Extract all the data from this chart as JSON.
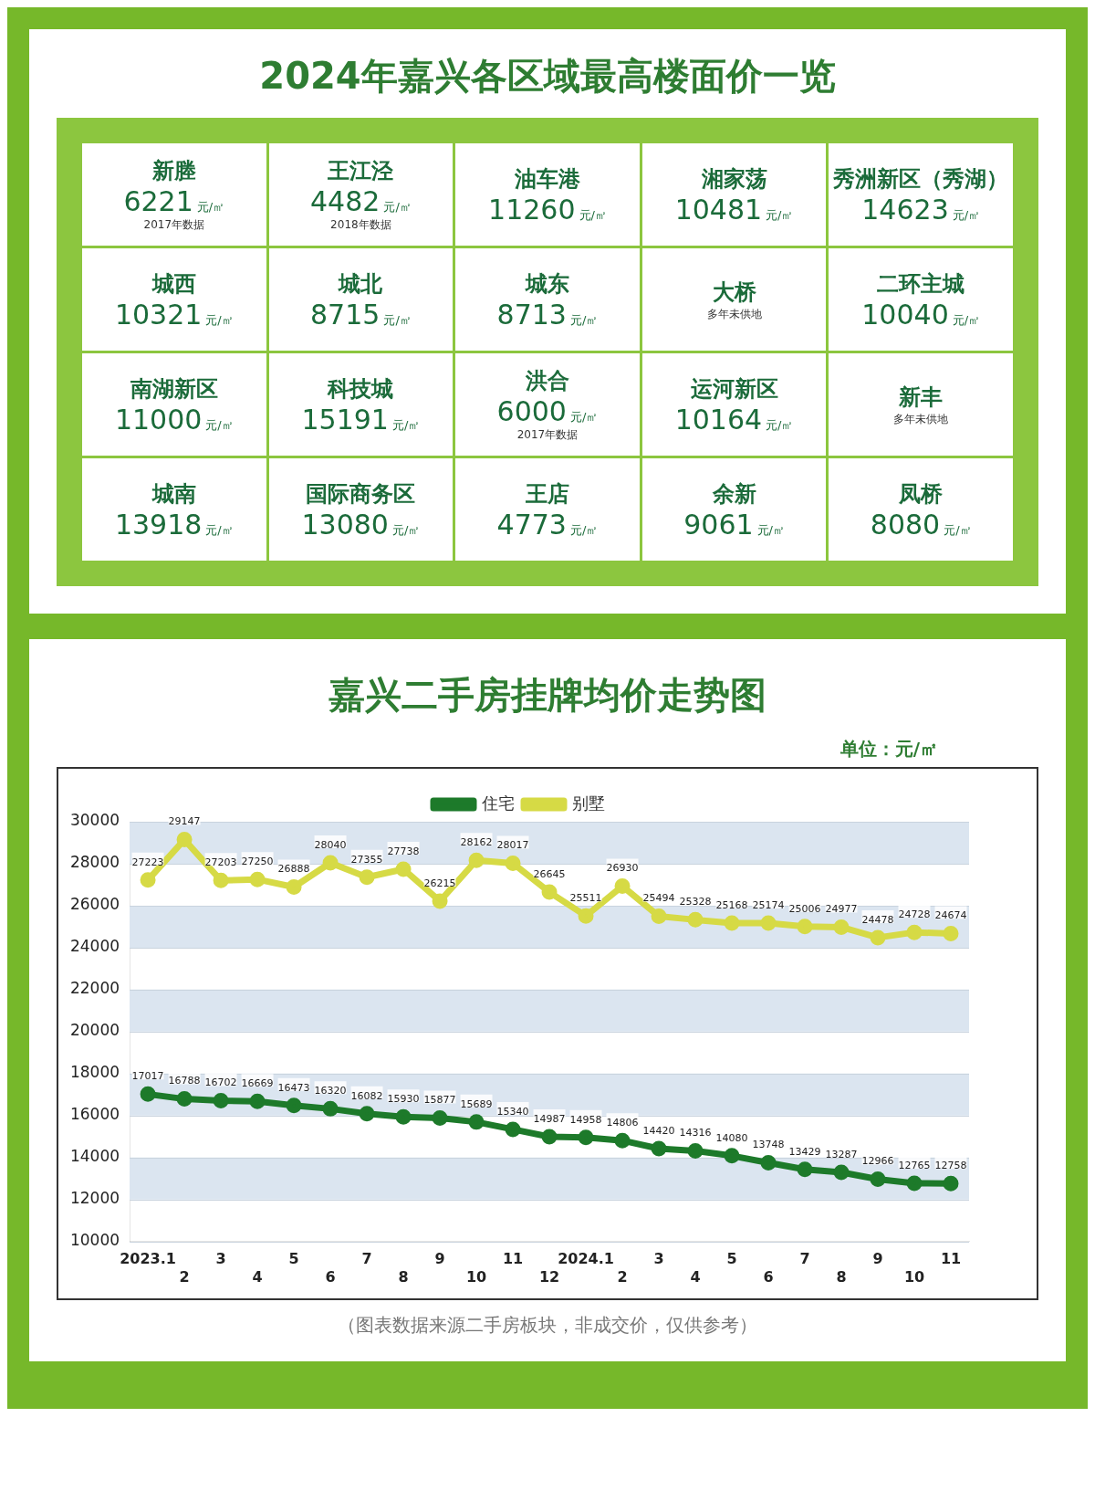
{
  "chart_data": [
    {
      "type": "other",
      "title": "2024年嘉兴各区域最高楼面价一览",
      "ylabel": "元/㎡",
      "categories": [
        "新塍",
        "王江泾",
        "油车港",
        "湘家荡",
        "秀洲新区（秀湖）",
        "城西",
        "城北",
        "城东",
        "大桥",
        "二环主城",
        "南湖新区",
        "科技城",
        "洪合",
        "运河新区",
        "新丰",
        "城南",
        "国际商务区",
        "王店",
        "余新",
        "凤桥"
      ],
      "values": [
        6221,
        4482,
        11260,
        10481,
        14623,
        10321,
        8715,
        8713,
        null,
        10040,
        11000,
        15191,
        6000,
        10164,
        null,
        13918,
        13080,
        4773,
        9061,
        8080
      ],
      "data_labels": true,
      "annotations": [
        {
          "text": "2017年数据",
          "x": "新塍"
        },
        {
          "text": "2018年数据",
          "x": "王江泾"
        },
        {
          "text": "多年未供地",
          "x": "大桥"
        },
        {
          "text": "2017年数据",
          "x": "洪合"
        },
        {
          "text": "多年未供地",
          "x": "新丰"
        }
      ]
    },
    {
      "type": "line",
      "title": "嘉兴二手房挂牌均价走势图",
      "ylabel": "单位：元/㎡",
      "categories": [
        "2023.1",
        "2",
        "3",
        "4",
        "5",
        "6",
        "7",
        "8",
        "9",
        "10",
        "11",
        "12",
        "2024.1",
        "2",
        "3",
        "4",
        "5",
        "6",
        "7",
        "8",
        "9",
        "10",
        "11"
      ],
      "series": [
        {
          "name": "住宅",
          "color": "#1d7a2a",
          "values": [
            17017,
            16788,
            16702,
            16669,
            16473,
            16320,
            16082,
            15930,
            15877,
            15689,
            15340,
            14987,
            14958,
            14806,
            14420,
            14316,
            14080,
            13748,
            13429,
            13287,
            12966,
            12765,
            12758
          ]
        },
        {
          "name": "别墅",
          "color": "#d6da45",
          "values": [
            27223,
            29147,
            27203,
            27250,
            26888,
            28040,
            27355,
            27738,
            26215,
            28162,
            28017,
            26645,
            25511,
            26930,
            25494,
            25328,
            25168,
            25174,
            25006,
            24977,
            24478,
            24728,
            24674
          ]
        }
      ],
      "ylim": [
        10000,
        30000
      ],
      "yticks": [
        10000,
        12000,
        14000,
        16000,
        18000,
        20000,
        22000,
        24000,
        26000,
        28000,
        30000
      ],
      "grid": "y",
      "legend": "top",
      "marker": "circle",
      "line_style": "solid",
      "data_labels": true,
      "annotations": [
        "（图表数据来源二手房板块，非成交价，仅供参考）"
      ]
    }
  ]
}
